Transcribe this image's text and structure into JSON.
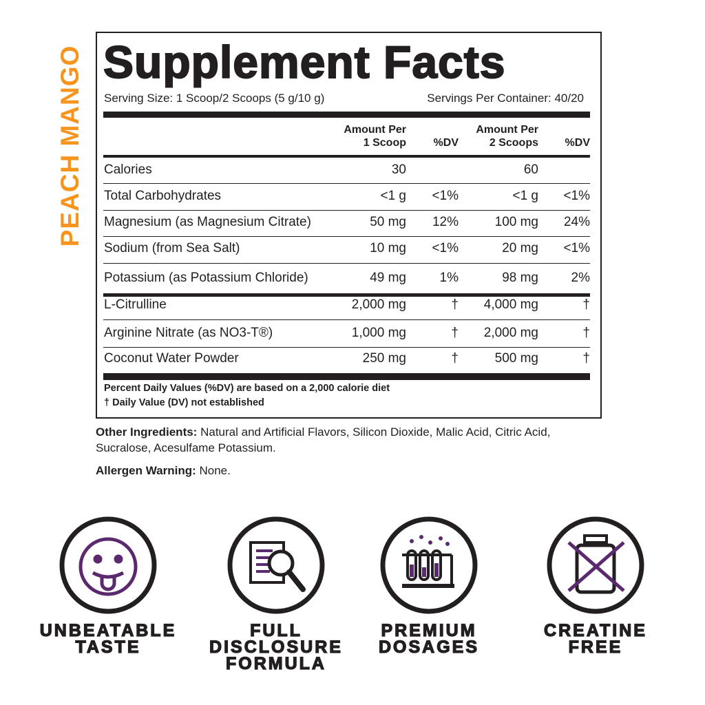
{
  "side_label": "PEACH MANGO",
  "title": "Supplement Facts",
  "serving_size": "Serving Size: 1 Scoop/2 Scoops (5 g/10 g)",
  "servings_per_container": "Servings Per Container: 40/20",
  "table": {
    "headers": [
      [
        "Amount Per",
        "1 Scoop"
      ],
      [
        "%DV"
      ],
      [
        "Amount Per",
        "2 Scoops"
      ],
      [
        "%DV"
      ]
    ],
    "rows": [
      [
        "Calories",
        "30",
        null,
        "60",
        null
      ],
      [
        "Total Carbohydrates",
        "<1 g",
        "<1%",
        "<1 g",
        "<1%"
      ],
      [
        "Magnesium (as Magnesium Citrate)",
        "50 mg",
        "12%",
        "100 mg",
        "24%"
      ],
      [
        "Sodium (from Sea Salt)",
        "10 mg",
        "<1%",
        "20 mg",
        "<1%"
      ],
      [
        "Potassium (as Potassium Chloride)",
        "49 mg",
        "1%",
        "98 mg",
        "2%"
      ],
      [
        "L-Citrulline",
        "2,000 mg",
        "†",
        "4,000 mg",
        "†"
      ],
      [
        "Arginine Nitrate (as NO3-T®)",
        "1,000 mg",
        "†",
        "2,000 mg",
        "†"
      ],
      [
        "Coconut Water Powder",
        "250 mg",
        "†",
        "500 mg",
        "†"
      ]
    ],
    "footnotes": [
      "Percent Daily Values (%DV) are based on a 2,000 calorie diet",
      "† Daily Value (DV) not established"
    ]
  },
  "other_ingredients": {
    "label": "Other Ingredients:",
    "text": "Natural and Artificial Flavors, Silicon Dioxide, Malic Acid, Citric Acid, Sucralose, Acesulfame Potassium."
  },
  "allergen_warning": {
    "label": "Allergen Warning:",
    "text": "None."
  },
  "badges": [
    [
      "UNBEATABLE",
      "TASTE"
    ],
    [
      "FULL",
      "DISCLOSURE",
      "FORMULA"
    ],
    [
      "PREMIUM",
      "DOSAGES"
    ],
    [
      "CREATINE",
      "FREE"
    ]
  ]
}
